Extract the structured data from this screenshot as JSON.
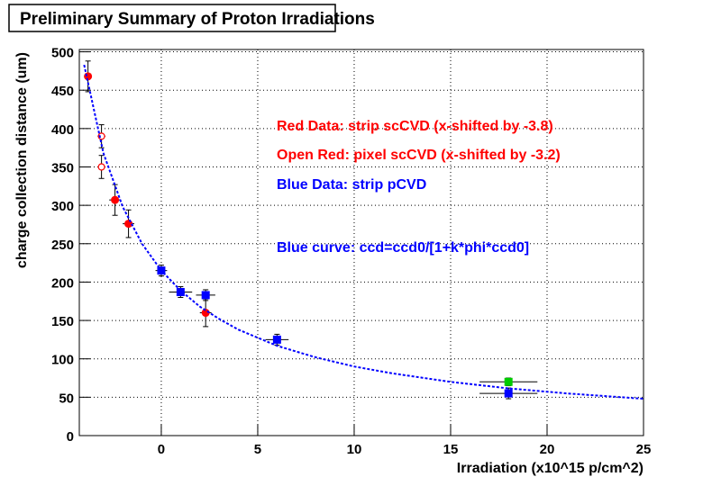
{
  "chart_data": {
    "type": "scatter",
    "title": "Preliminary Summary of Proton Irradiations",
    "x_label": "Irradiation (x10^15 p/cm^2)",
    "y_label": "charge collection distance (um)",
    "xlim": [
      -4.25,
      25
    ],
    "ylim": [
      0,
      503
    ],
    "xticks": [
      0,
      5,
      10,
      15,
      20,
      25
    ],
    "yticks": [
      0,
      50,
      100,
      150,
      200,
      250,
      300,
      350,
      400,
      450,
      500
    ],
    "grid": true,
    "annotations": [
      {
        "text": "Red Data: strip scCVD  (x-shifted by -3.8)",
        "color": "#ff0000"
      },
      {
        "text": "Open Red: pixel scCVD (x-shifted by -3.2)",
        "color": "#ff0000"
      },
      {
        "text": "Blue Data: strip pCVD",
        "color": "#0000ff"
      },
      {
        "text": "Blue curve: ccd=ccd0/[1+k*phi*ccd0]",
        "color": "#0000ff"
      }
    ],
    "series": [
      {
        "marker": "circle",
        "color": "#ff0000",
        "x": [
          -3.8,
          -2.4,
          -1.7,
          2.3
        ],
        "values": [
          468,
          307,
          276,
          160
        ],
        "xerr": [
          0.2,
          0.3,
          0.3,
          0.3
        ],
        "yerr": [
          20,
          20,
          18,
          18
        ]
      },
      {
        "marker": "open-circle",
        "color": "#ff0000",
        "x": [
          -3.1,
          -3.1
        ],
        "values": [
          390,
          350
        ],
        "xerr": [
          0.2,
          0.2
        ],
        "yerr": [
          15,
          15
        ]
      },
      {
        "marker": "square",
        "color": "#0000ff",
        "x": [
          0,
          1,
          2.3,
          6,
          18
        ],
        "values": [
          215,
          187,
          183,
          125,
          55
        ],
        "xerr": [
          0.3,
          0.6,
          0.5,
          0.6,
          1.5
        ],
        "yerr": [
          7,
          7,
          7,
          7,
          7
        ]
      },
      {
        "marker": "square",
        "color": "#00cc00",
        "x": [
          18
        ],
        "values": [
          70
        ],
        "xerr": [
          1.5
        ],
        "yerr": [
          5
        ]
      },
      {
        "marker": "line",
        "color": "#0000ff",
        "x": [
          -4,
          -3,
          -2,
          -1,
          0,
          1,
          2,
          3,
          4,
          6,
          8,
          10,
          12,
          15,
          18,
          21,
          25
        ],
        "values": [
          483,
          368,
          298,
          250,
          215,
          189,
          168,
          152,
          138,
          117,
          102,
          90,
          81,
          70,
          61.5,
          55,
          48
        ]
      }
    ]
  }
}
